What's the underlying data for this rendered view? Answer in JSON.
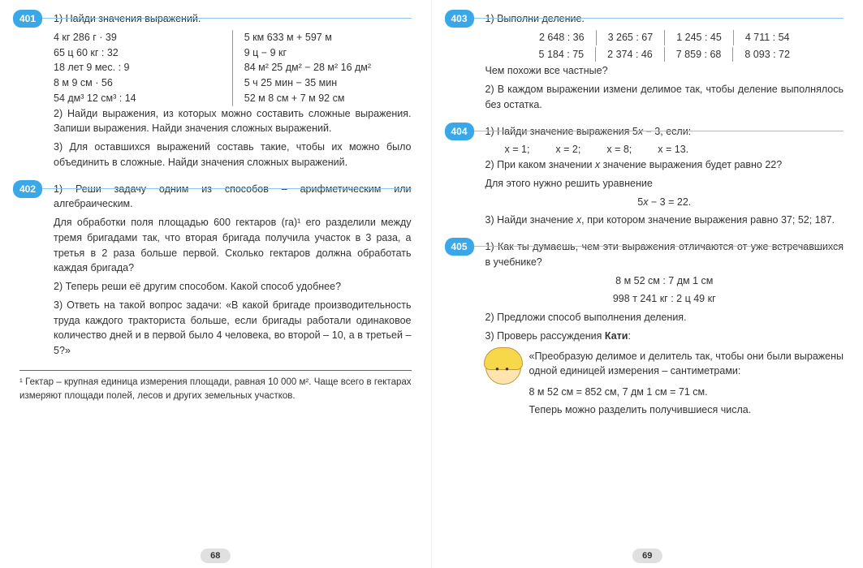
{
  "left": {
    "page_num": "68",
    "ex401": {
      "num": "401",
      "p1": "1)  Найди  значения  выражений.",
      "col1": [
        "4 кг  286 г · 39",
        "65 ц  60 кг : 32",
        "18 лет  9 мес. : 9",
        "8 м  9 см · 56",
        "54 дм³  12 см³ : 14"
      ],
      "col2": [
        "5 км  633 м + 597 м",
        "9 ц  −  9 кг",
        "84 м²  25 дм² − 28 м²  16 дм²",
        "5 ч  25 мин − 35 мин",
        "52 м  8 см + 7 м  92 см"
      ],
      "p2": "2)  Найди  выражения,  из  которых  можно  составить  сложные  выражения.  Запиши  выражения.  Найди  значения  сложных  выражений.",
      "p3": "3)  Для  оставшихся  выражений  составь  такие,  чтобы  их  можно  было  объединить  в  сложные.  Найди  значения  сложных  выражений."
    },
    "ex402": {
      "num": "402",
      "p1": "1)  Реши  задачу  одним  из  способов  –  арифметическим  или  алгебраическим.",
      "body": "Для обработки поля площадью 600 гектаров (га)¹ его разделили между тремя бригадами так, что вторая бригада получила участок в 3 раза, а третья в 2 раза больше первой. Сколько гектаров должна обработать каждая бригада?",
      "p2": "2)  Теперь  реши  её  другим  способом.  Какой  способ  удобнее?",
      "p3": "3)  Ответь  на  такой  вопрос  задачи:  «В  какой  бригаде  производительность  труда  каждого  тракториста  больше,  если  бригады  работали  одинаковое  количество  дней  и  в  первой  было  4  человека,  во  второй  –  10,  а  в  третьей  –  5?»"
    },
    "footnote": "¹ Гектар – крупная единица измерения площади, равная 10 000 м². Чаще всего в гектарах измеряют площади полей, лесов и других земельных участков."
  },
  "right": {
    "page_num": "69",
    "ex403": {
      "num": "403",
      "p1": "1)  Выполни  деление.",
      "row1": [
        "2 648 : 36",
        "3 265 : 67",
        "1 245 : 45",
        "4 711 : 54"
      ],
      "row2": [
        "5 184 : 75",
        "2 374 : 46",
        "7 859 : 68",
        "8 093 : 72"
      ],
      "p2": "Чем  похожи  все  частные?",
      "p3": "2)  В  каждом  выражении  измени  делимое  так,  чтобы  деление  выполнялось  без  остатка."
    },
    "ex404": {
      "num": "404",
      "p1_pre": "1)  Найди  значение  выражения  5",
      "p1_post": " − 3,  если:",
      "x_vals": [
        "x = 1;",
        "x = 2;",
        "x = 8;",
        "x = 13."
      ],
      "p2_pre": "2)  При  каком  значении  ",
      "p2_post": "  значение  выражения  будет  равно  22?",
      "p3": "Для  этого  нужно  решить  уравнение",
      "eq": "5x − 3 = 22.",
      "p4_pre": "3)  Найди  значение  ",
      "p4_post": ",  при  котором  значение  выражения  равно  37;  52;  187."
    },
    "ex405": {
      "num": "405",
      "p1": "1)  Как  ты  думаешь,  чем  эти  выражения  отличаются  от  уже  встречавшихся  в  учебнике?",
      "e1": "8 м  52 см : 7 дм  1 см",
      "e2": "998 т  241 кг : 2 ц  49 кг",
      "p2": "2)  Предложи  способ  выполнения  деления.",
      "p3_pre": "3)  Проверь  рассуждения  ",
      "p3_name": "Кати",
      "p3_post": ":",
      "quote": "«Преобразую  делимое  и  делитель  так,  чтобы  они  были  выражены  одной  единицей  измерения  –  сантиметрами:",
      "conv": "8 м  52 см = 852 см,      7 дм  1 см = 71 см.",
      "tail": "Теперь  можно  разделить  получившиеся  числа."
    }
  }
}
